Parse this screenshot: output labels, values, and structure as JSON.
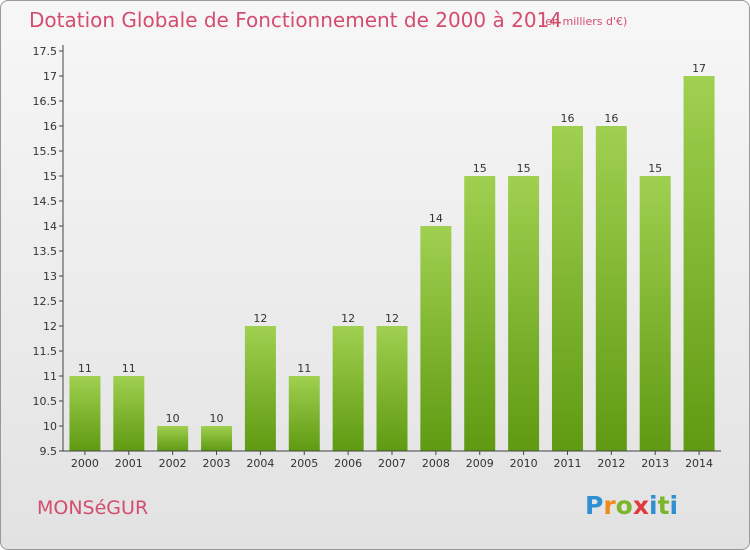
{
  "header": {
    "title": "Dotation Globale de Fonctionnement de 2000 à 2014",
    "subtitle": "(en milliers d'€)"
  },
  "footer": {
    "town": "MONSéGUR",
    "logo": "Proxiti"
  },
  "colors": {
    "bar_top": "#a0d050",
    "bar_bottom": "#5f9a12",
    "title": "#d44c6e"
  },
  "chart_data": {
    "type": "bar",
    "categories": [
      "2000",
      "2001",
      "2002",
      "2003",
      "2004",
      "2005",
      "2006",
      "2007",
      "2008",
      "2009",
      "2010",
      "2011",
      "2012",
      "2013",
      "2014"
    ],
    "values": [
      11,
      11,
      10,
      10,
      12,
      11,
      12,
      12,
      14,
      15,
      15,
      16,
      16,
      15,
      17
    ],
    "data_labels": [
      "11",
      "11",
      "10",
      "10",
      "12",
      "11",
      "12",
      "12",
      "14",
      "15",
      "15",
      "16",
      "16",
      "15",
      "17"
    ],
    "y_ticks": [
      "9.5",
      "10",
      "10.5",
      "11",
      "11.5",
      "12",
      "12.5",
      "13",
      "13.5",
      "14",
      "14.5",
      "15",
      "15.5",
      "16",
      "16.5",
      "17",
      "17.5"
    ],
    "ylim": [
      9.5,
      17.5
    ],
    "grid": false,
    "title": "Dotation Globale de Fonctionnement de 2000 à 2014",
    "xlabel": "",
    "ylabel": ""
  }
}
